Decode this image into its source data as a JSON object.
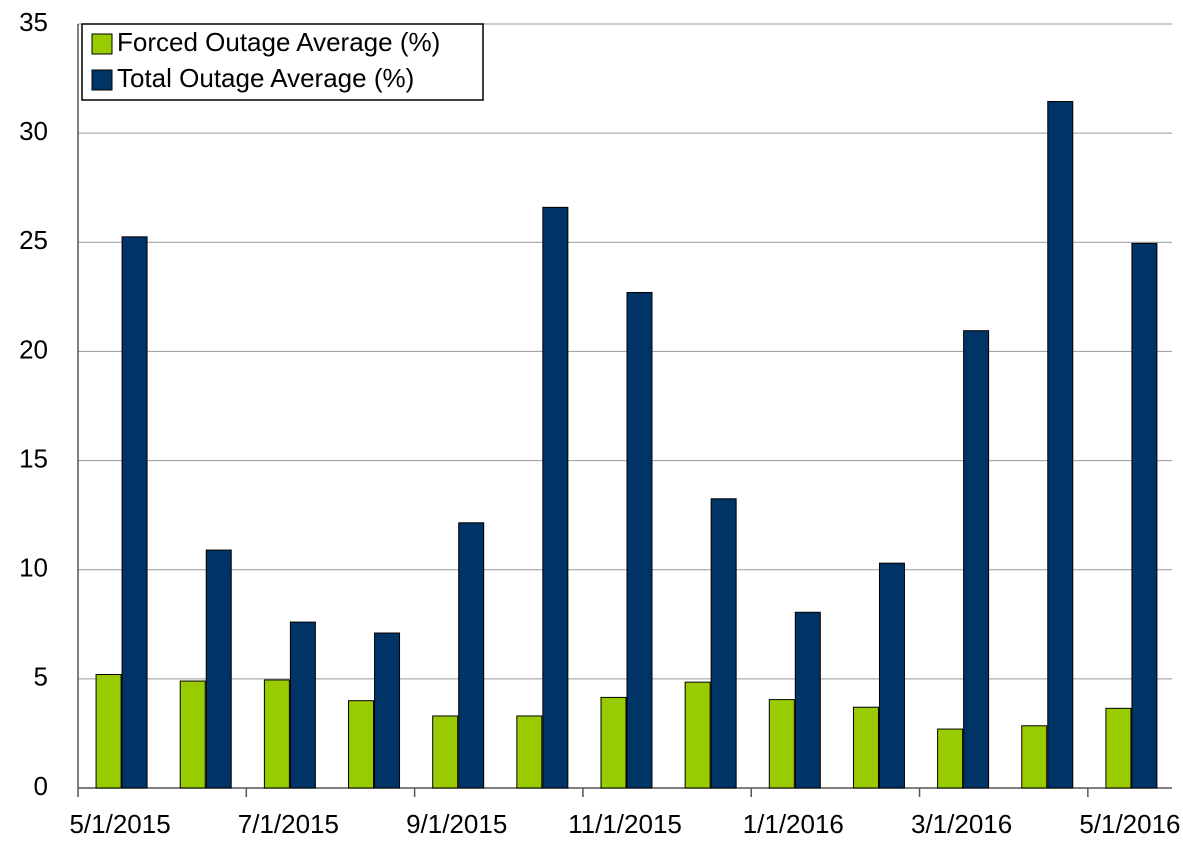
{
  "chart_data": {
    "type": "bar",
    "categories": [
      "5/1/2015",
      null,
      "7/1/2015",
      null,
      "9/1/2015",
      null,
      "11/1/2015",
      null,
      "1/1/2016",
      null,
      "3/1/2016",
      null,
      "5/1/2016"
    ],
    "series": [
      {
        "name": "Forced Outage Average (%)",
        "color": "#99cc00",
        "values": [
          5.2,
          4.9,
          4.95,
          4.0,
          3.3,
          3.3,
          4.15,
          4.85,
          4.05,
          3.7,
          2.7,
          2.85,
          3.65
        ]
      },
      {
        "name": "Total Outage Average (%)",
        "color": "#003366",
        "values": [
          25.25,
          10.9,
          7.6,
          7.1,
          12.15,
          26.6,
          22.7,
          13.25,
          8.05,
          10.3,
          20.95,
          31.45,
          24.95
        ]
      }
    ],
    "ylim": [
      0,
      35
    ],
    "yticks": [
      0,
      5,
      10,
      15,
      20,
      25,
      30,
      35
    ],
    "grid": true,
    "legend": "upper left"
  }
}
